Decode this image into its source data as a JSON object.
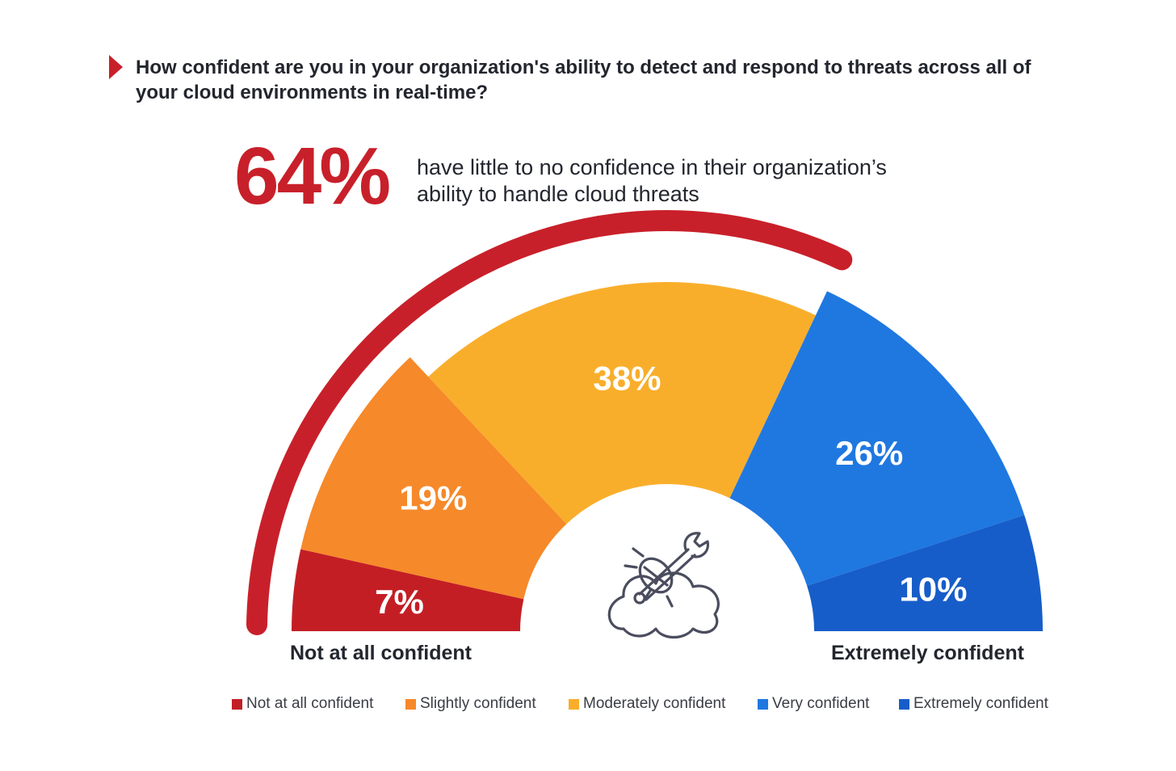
{
  "question": {
    "text": "How confident are you in your organization's ability to detect and respond to threats across all of your cloud environments in real-time?"
  },
  "highlight": {
    "value": "64%",
    "text": "have little to no confidence in their organization’s ability to handle cloud threats"
  },
  "colors": {
    "accent": "#c8202a",
    "text": "#23262e"
  },
  "icon": "cloud-bug-wrench-icon",
  "chart_data": {
    "type": "pie",
    "variant": "half-donut",
    "categories": [
      "Not at all confident",
      "Slightly confident",
      "Moderately confident",
      "Very confident",
      "Extremely confident"
    ],
    "values": [
      7,
      19,
      38,
      26,
      10
    ],
    "value_labels": [
      "7%",
      "19%",
      "38%",
      "26%",
      "10%"
    ],
    "colors": [
      "#c41e25",
      "#f6892a",
      "#f9ae2b",
      "#1f78e0",
      "#175dc9"
    ],
    "highlight_arc": {
      "value": 64,
      "covers": [
        "Not at all confident",
        "Slightly confident",
        "Moderately confident"
      ],
      "color": "#c8202a"
    },
    "scale_left_label": "Not at all confident",
    "scale_right_label": "Extremely confident",
    "legend": [
      "Not at all confident",
      "Slightly confident",
      "Moderately confident",
      "Very confident",
      "Extremely confident"
    ],
    "legend_placement": "bottom"
  }
}
